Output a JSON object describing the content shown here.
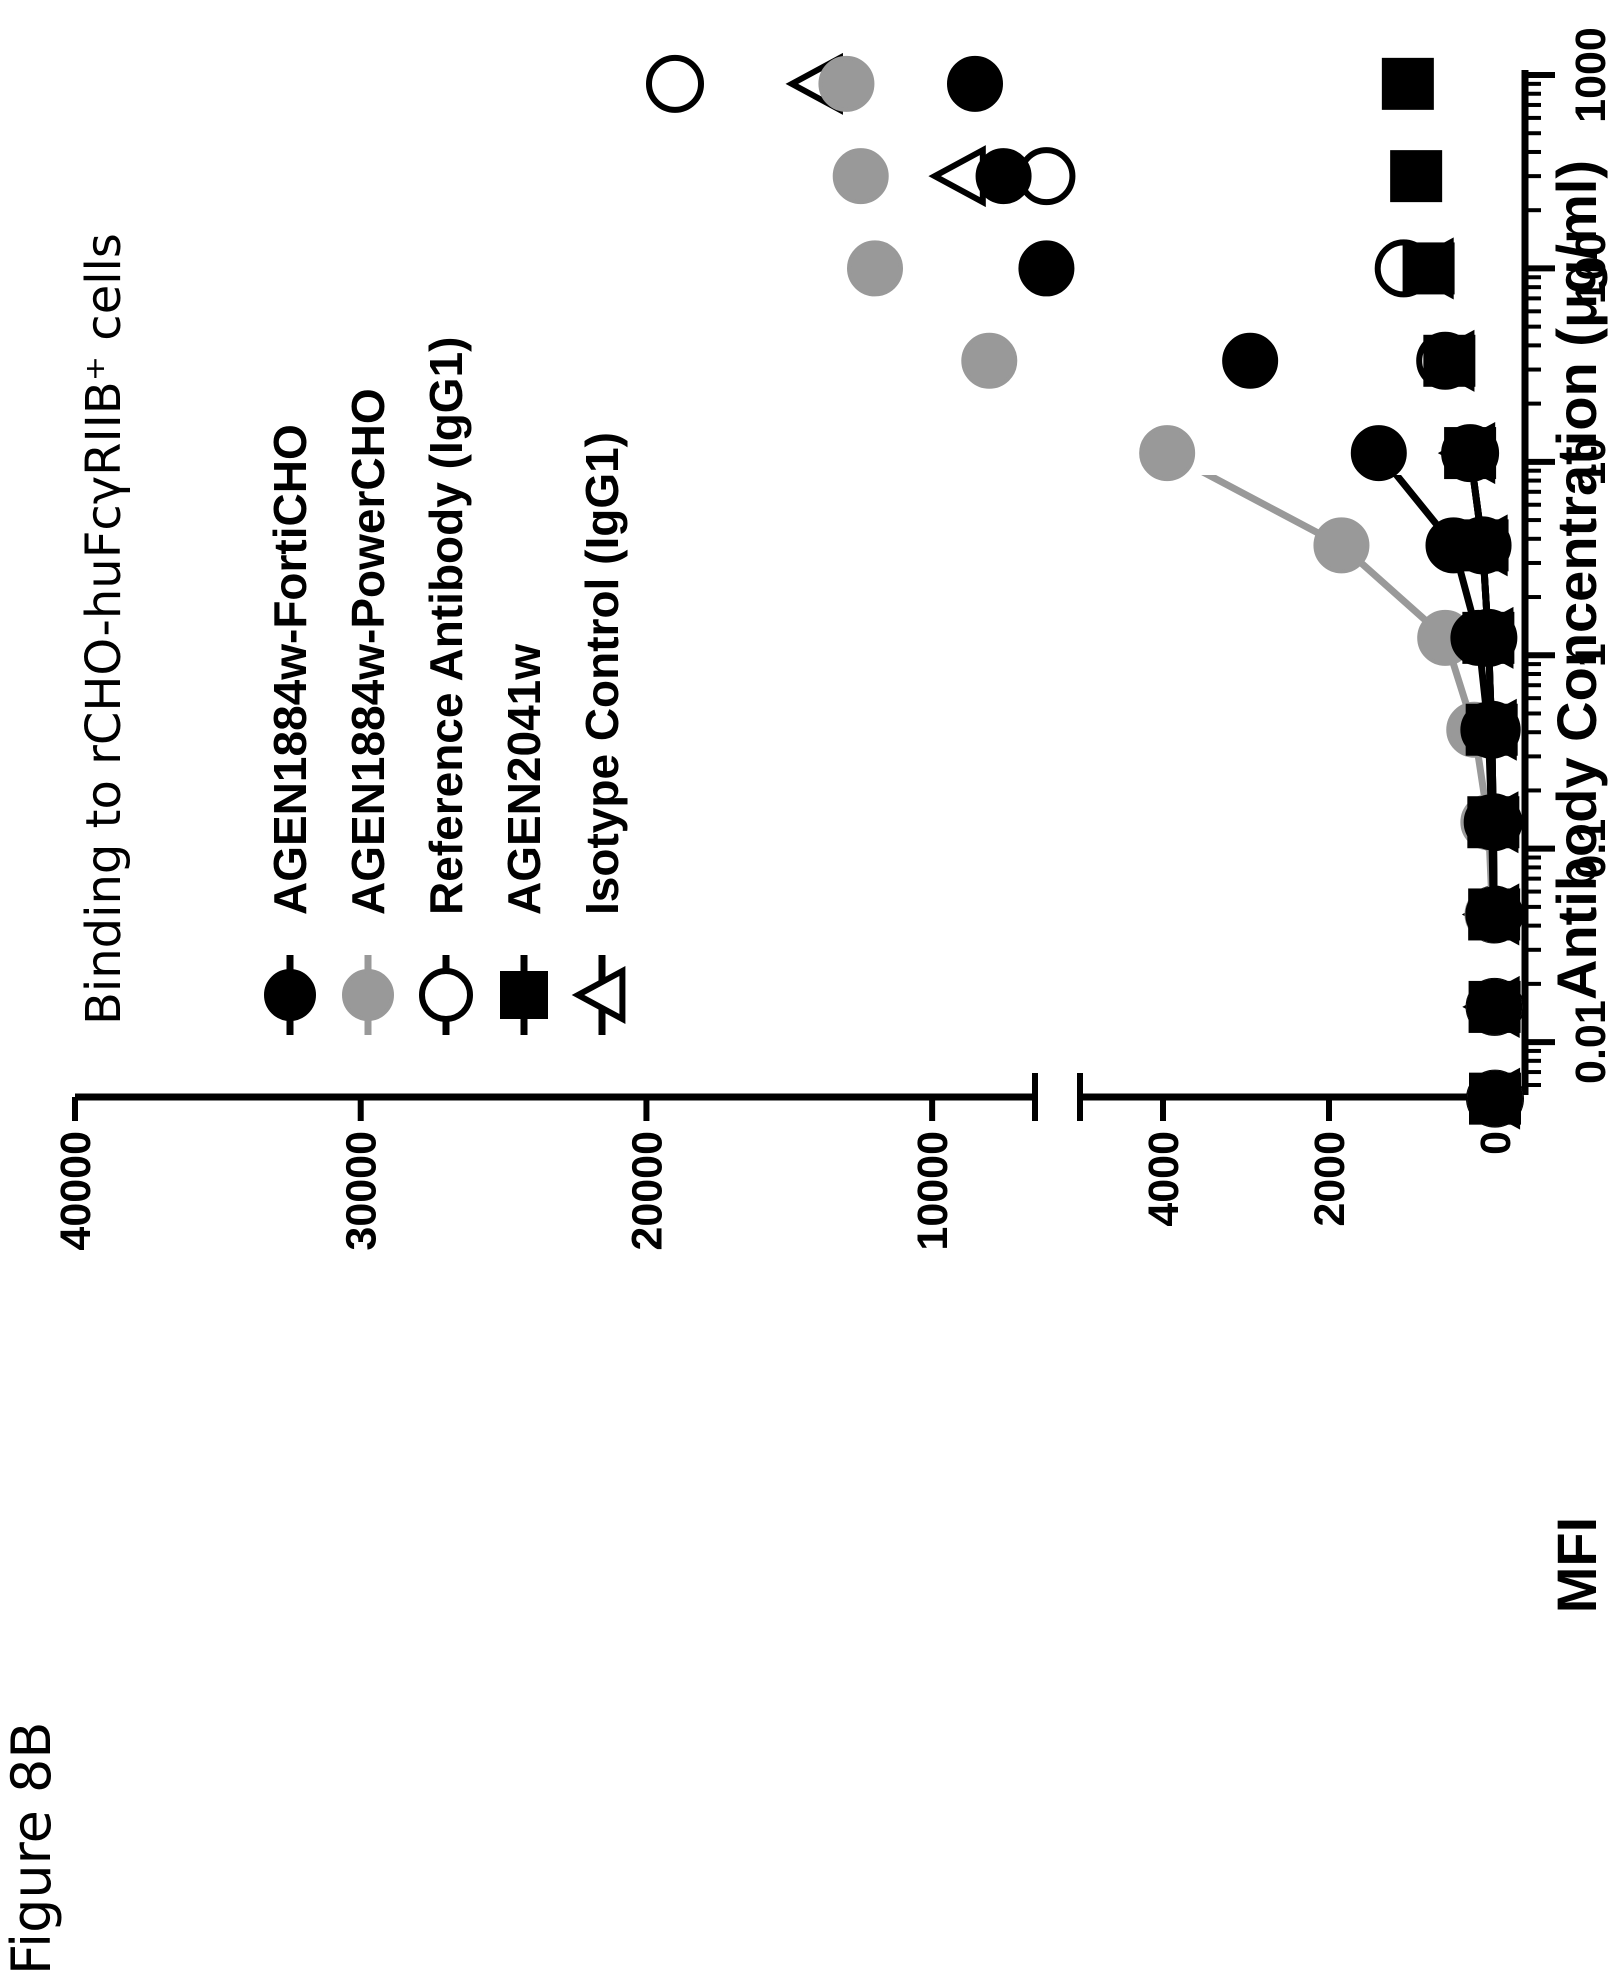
{
  "figure_label": "Figure 8B",
  "chart_data": {
    "type": "line",
    "title": "Binding to rCHO-huFcγRIIB⁺ cells",
    "xlabel": "Antibody Concentration (μg/ml)",
    "ylabel": "MFI",
    "x_scale": "log",
    "xlim": [
      0.006,
      1000
    ],
    "x_ticks": [
      0.01,
      0.1,
      1,
      10,
      100,
      1000
    ],
    "x_tick_labels": [
      "0.01",
      "0.1",
      "1",
      "10",
      "100",
      "1000"
    ],
    "y_axis_break": true,
    "y_lower_segment": {
      "ylim": [
        0,
        5000
      ],
      "ticks": [
        0,
        2000,
        4000
      ],
      "tick_labels": [
        "0",
        "2000",
        "4000"
      ]
    },
    "y_upper_segment": {
      "ylim": [
        5000,
        40000
      ],
      "ticks": [
        10000,
        20000,
        30000,
        40000
      ],
      "tick_labels": [
        "10000",
        "20000",
        "30000",
        "40000"
      ]
    },
    "x": [
      0.0051,
      0.0152,
      0.0457,
      0.137,
      0.412,
      1.23,
      3.7,
      11.1,
      33.3,
      100,
      300,
      900
    ],
    "series": [
      {
        "name": "AGEN1884w-FortiCHO",
        "marker": "filled-circle",
        "color": "#000000",
        "values": [
          0,
          10,
          20,
          40,
          80,
          200,
          500,
          1400,
          2950,
          6000,
          7500,
          8500
        ]
      },
      {
        "name": "AGEN1884w-PowerCHO",
        "marker": "filled-circle",
        "color": "#999999",
        "values": [
          0,
          10,
          30,
          80,
          250,
          600,
          1850,
          3950,
          8000,
          12000,
          12500,
          13000
        ]
      },
      {
        "name": "Reference Antibody (IgG1)",
        "marker": "open-circle",
        "color": "#000000",
        "values": [
          0,
          5,
          10,
          20,
          40,
          80,
          150,
          300,
          600,
          1100,
          6000,
          19000
        ]
      },
      {
        "name": "AGEN2041w",
        "marker": "filled-square",
        "color": "#000000",
        "values": [
          0,
          5,
          10,
          20,
          40,
          80,
          150,
          300,
          550,
          800,
          950,
          1050
        ]
      },
      {
        "name": "Isotype Control (IgG1)",
        "marker": "open-triangle",
        "color": "#000000",
        "values": [
          0,
          5,
          10,
          20,
          40,
          80,
          150,
          300,
          550,
          800,
          9000,
          14000
        ]
      }
    ],
    "legend_position": "top-left",
    "grid": false
  }
}
